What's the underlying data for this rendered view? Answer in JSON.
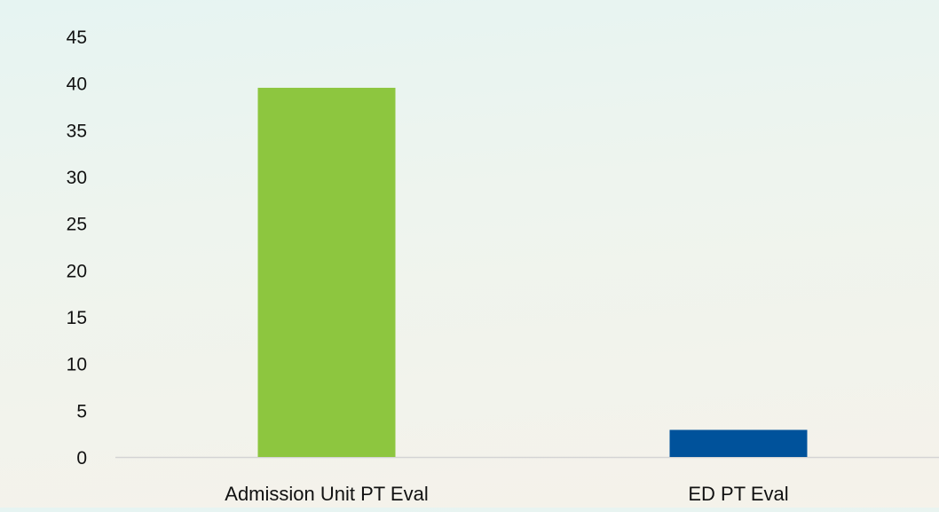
{
  "chart_data": {
    "type": "bar",
    "title": "",
    "xlabel": "",
    "ylabel": "",
    "categories": [
      "Admission Unit PT Eval",
      "ED PT Eval"
    ],
    "values": [
      39.5,
      2.9
    ],
    "colors": [
      "#8dc63f",
      "#00529b"
    ],
    "ylim": [
      0,
      45
    ],
    "yticks": [
      0,
      5,
      10,
      15,
      20,
      25,
      30,
      35,
      40,
      45
    ],
    "grid": false,
    "legend": "none"
  },
  "axis_color": "#d4d4d4"
}
